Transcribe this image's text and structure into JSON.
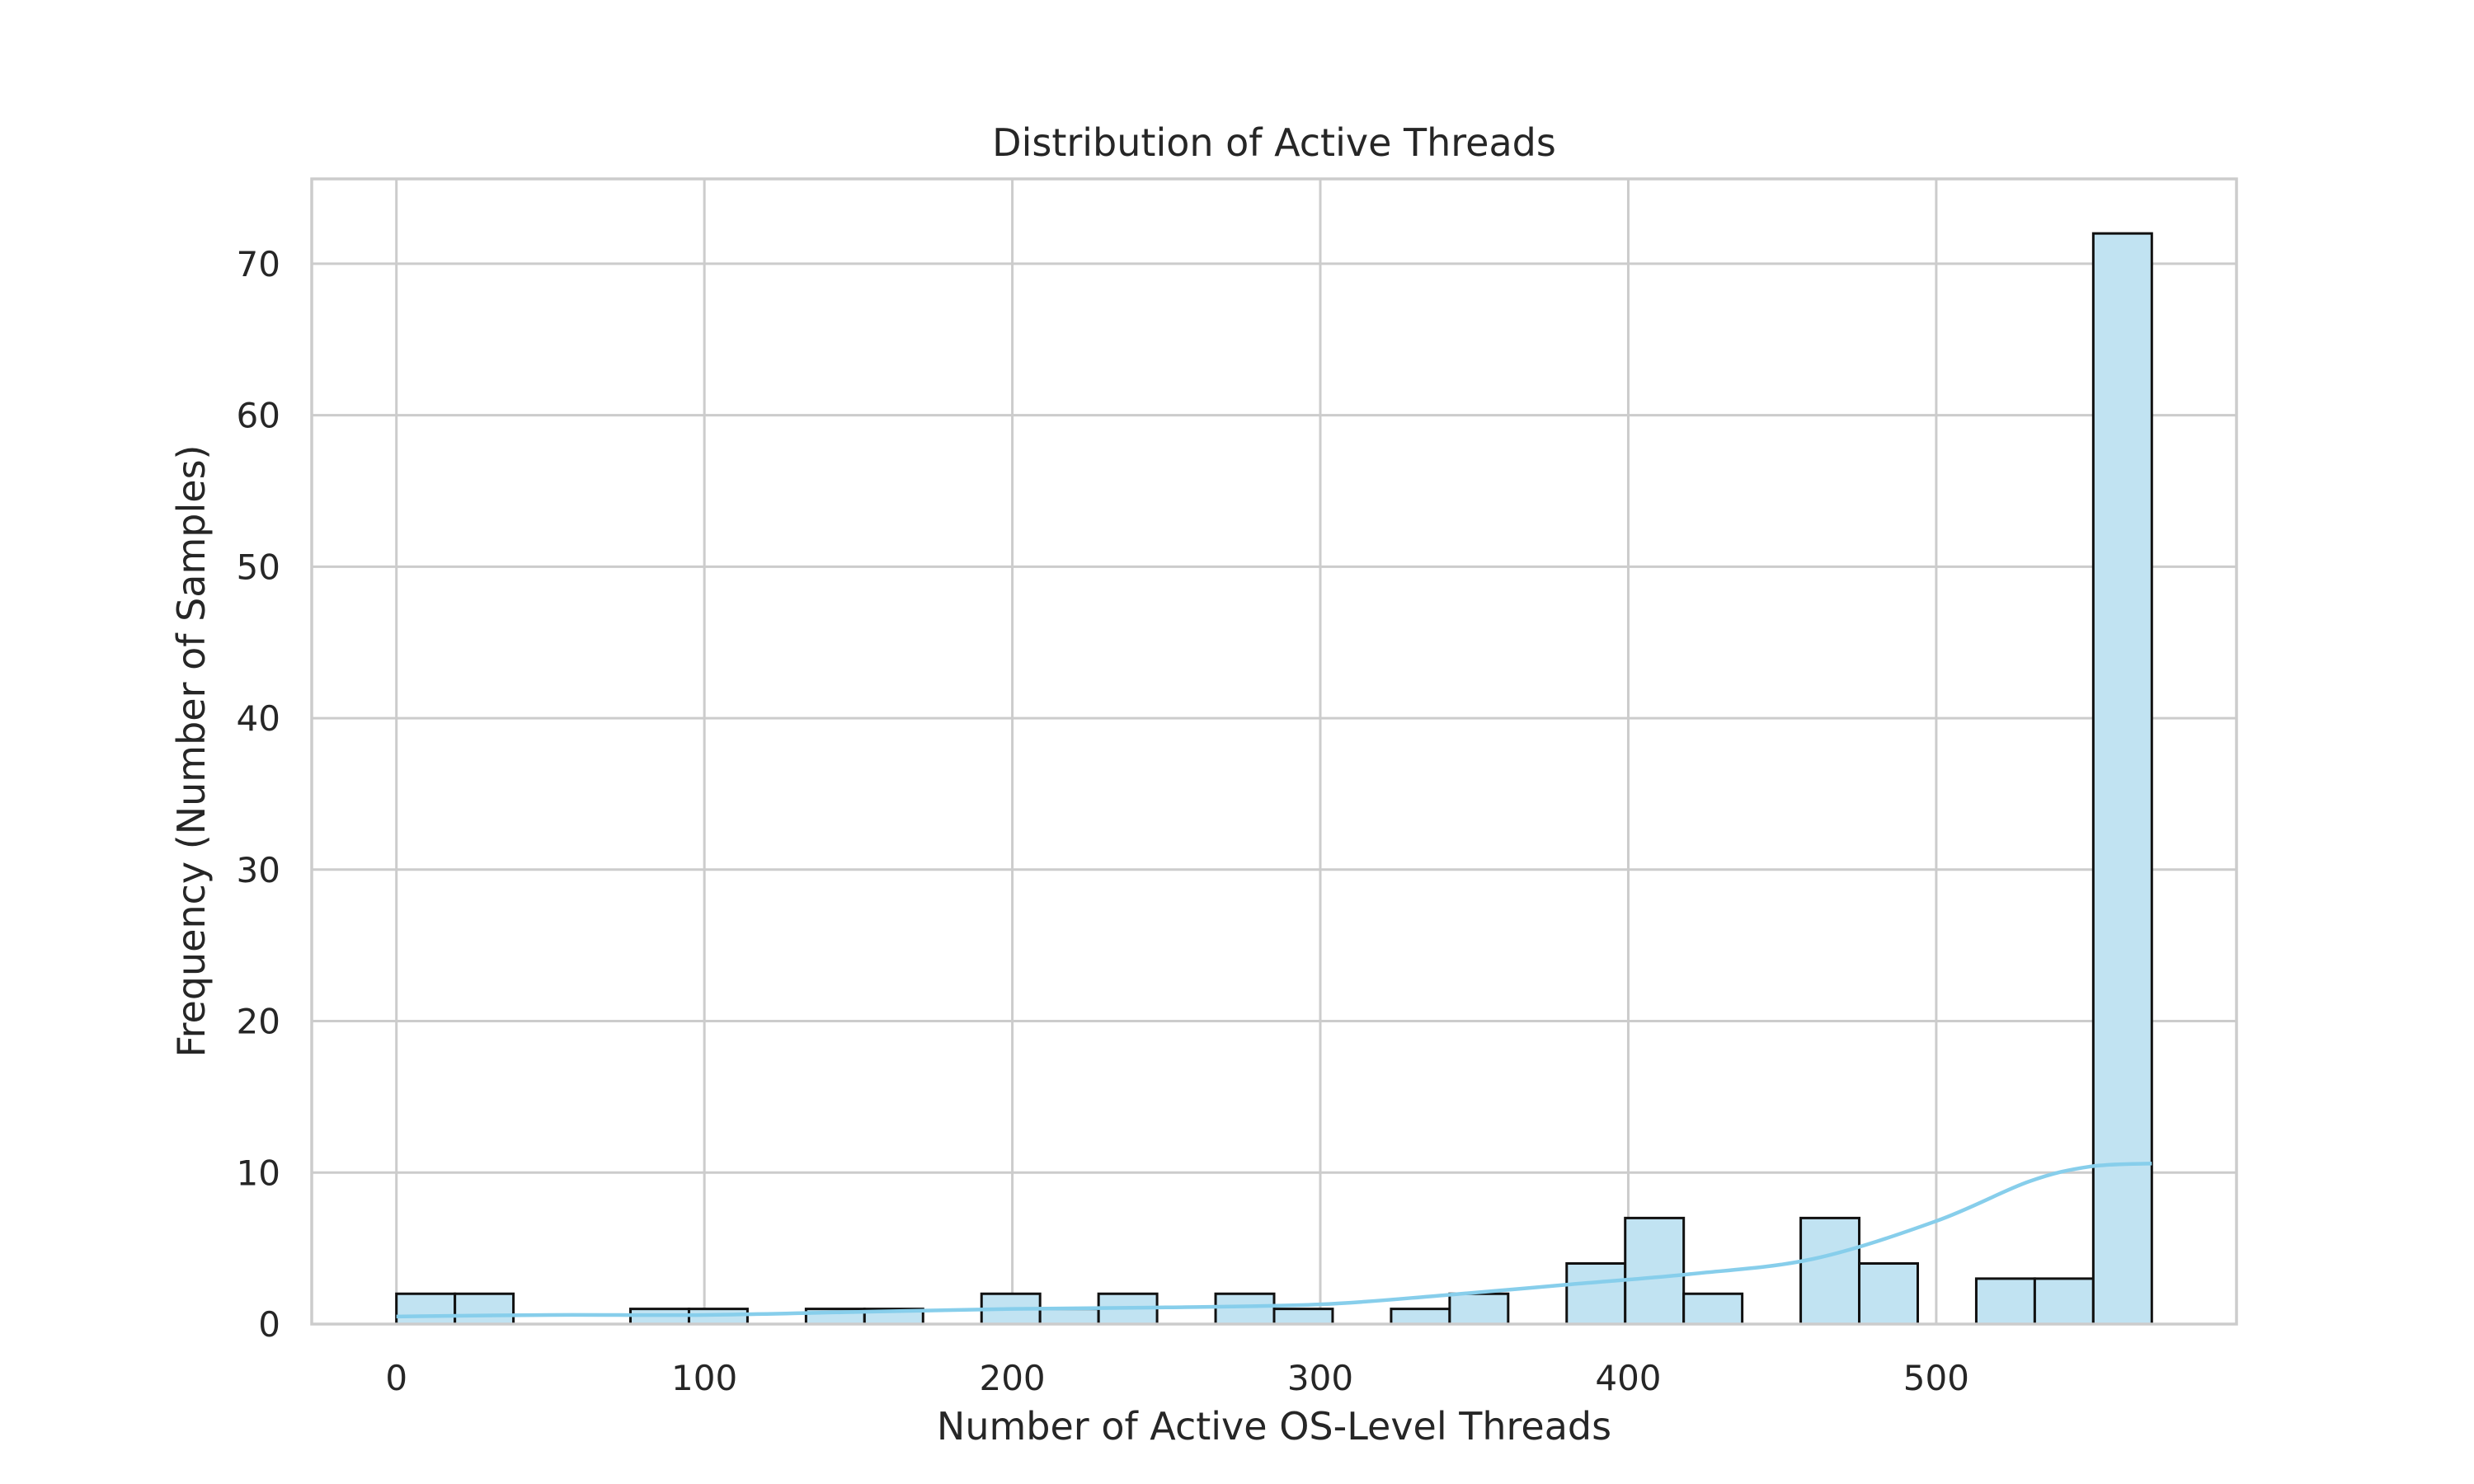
{
  "chart_data": {
    "type": "bar",
    "subtype": "histogram",
    "title": "Distribution of Active Threads",
    "xlabel": "Number of Active OS-Level Threads",
    "ylabel": "Frequency (Number of Samples)",
    "xlim": [
      -27.5,
      597.5
    ],
    "ylim": [
      0,
      75.6
    ],
    "xticks": [
      0,
      100,
      200,
      300,
      400,
      500
    ],
    "yticks": [
      0,
      10,
      20,
      30,
      40,
      50,
      60,
      70
    ],
    "grid": true,
    "bin_width": 19,
    "bins": [
      {
        "start": 0,
        "end": 19,
        "count": 2
      },
      {
        "start": 19,
        "end": 38,
        "count": 2
      },
      {
        "start": 38,
        "end": 57,
        "count": 0
      },
      {
        "start": 57,
        "end": 76,
        "count": 0
      },
      {
        "start": 76,
        "end": 95,
        "count": 1
      },
      {
        "start": 95,
        "end": 114,
        "count": 1
      },
      {
        "start": 114,
        "end": 133,
        "count": 0
      },
      {
        "start": 133,
        "end": 152,
        "count": 1
      },
      {
        "start": 152,
        "end": 171,
        "count": 1
      },
      {
        "start": 171,
        "end": 190,
        "count": 0
      },
      {
        "start": 190,
        "end": 209,
        "count": 2
      },
      {
        "start": 209,
        "end": 228,
        "count": 1
      },
      {
        "start": 228,
        "end": 247,
        "count": 2
      },
      {
        "start": 247,
        "end": 266,
        "count": 0
      },
      {
        "start": 266,
        "end": 285,
        "count": 2
      },
      {
        "start": 285,
        "end": 304,
        "count": 1
      },
      {
        "start": 304,
        "end": 323,
        "count": 0
      },
      {
        "start": 323,
        "end": 342,
        "count": 1
      },
      {
        "start": 342,
        "end": 361,
        "count": 2
      },
      {
        "start": 361,
        "end": 380,
        "count": 0
      },
      {
        "start": 380,
        "end": 399,
        "count": 4
      },
      {
        "start": 399,
        "end": 418,
        "count": 7
      },
      {
        "start": 418,
        "end": 437,
        "count": 2
      },
      {
        "start": 437,
        "end": 456,
        "count": 0
      },
      {
        "start": 456,
        "end": 475,
        "count": 7
      },
      {
        "start": 475,
        "end": 494,
        "count": 4
      },
      {
        "start": 494,
        "end": 513,
        "count": 0
      },
      {
        "start": 513,
        "end": 532,
        "count": 3
      },
      {
        "start": 532,
        "end": 551,
        "count": 3
      },
      {
        "start": 551,
        "end": 570,
        "count": 72
      }
    ],
    "kde": {
      "x": [
        0,
        50,
        100,
        150,
        200,
        250,
        300,
        340,
        380,
        420,
        460,
        500,
        530,
        550,
        570
      ],
      "y": [
        0.5,
        0.6,
        0.6,
        0.8,
        1.0,
        1.1,
        1.3,
        1.9,
        2.6,
        3.3,
        4.3,
        6.8,
        9.4,
        10.4,
        10.6
      ]
    },
    "colors": {
      "bar_fill": "#c1e3f2",
      "bar_edge": "#111111",
      "kde_line": "#87ceeb",
      "grid": "#cccccc"
    }
  }
}
